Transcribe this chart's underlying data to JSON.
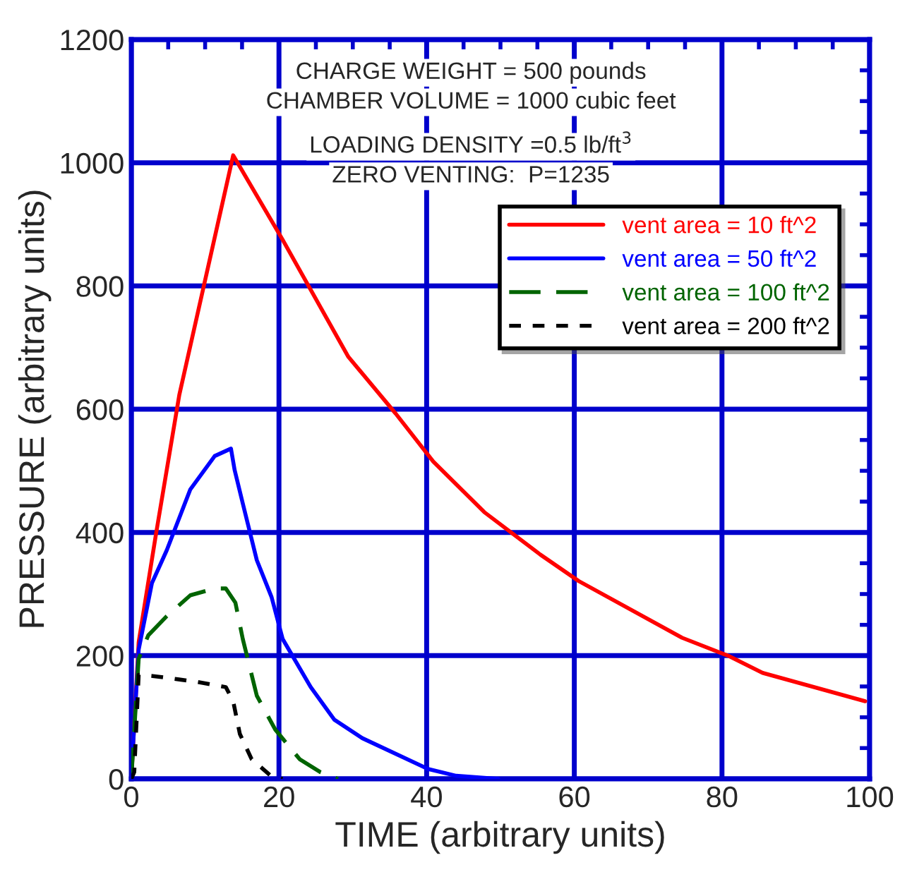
{
  "chart_data": {
    "type": "line",
    "xlabel": "TIME (arbitrary units)",
    "ylabel": "PRESSURE (arbitrary units)",
    "xlim": [
      0,
      100
    ],
    "xticks": [
      0,
      20,
      40,
      60,
      80,
      100
    ],
    "ylim": [
      0,
      1200
    ],
    "yticks": [
      0,
      200,
      400,
      600,
      800,
      1000,
      1200
    ],
    "grid": true,
    "legend": "top right",
    "marker": "none",
    "annotations": [
      "CHARGE WEIGHT = 500 pounds",
      "CHAMBER VOLUME = 1000 cubic feet",
      "LOADING DENSITY =0.5 lb/ft$^{3}$",
      "ZERO VENTING:  P=1235"
    ],
    "series": [
      {
        "name": "vent area = 10 ft^2",
        "color": "#ff0000",
        "line_style": "solid",
        "x": [
          0,
          1,
          3.3,
          6.5,
          13.8,
          20.5,
          29.4,
          35.8,
          40.9,
          47.8,
          55.4,
          60.6,
          74.6,
          81,
          85.5,
          99.4
        ],
        "values": [
          0,
          222,
          394,
          623,
          1012,
          875,
          685,
          593,
          515,
          433,
          364,
          321,
          229,
          199,
          172,
          126
        ]
      },
      {
        "name": "vent area = 50 ft^2",
        "color": "#0000ff",
        "line_style": "solid",
        "x": [
          0,
          1,
          2.8,
          4.8,
          8,
          11.3,
          13.5,
          14,
          15.1,
          17,
          19,
          20.5,
          24.3,
          27.5,
          31.3,
          40.2,
          44,
          49.7
        ],
        "values": [
          5,
          210,
          318,
          371,
          470,
          524,
          536,
          501,
          447,
          355,
          295,
          227,
          149,
          96,
          66,
          16,
          5,
          0
        ]
      },
      {
        "name": "vent area = 100 ft^2",
        "color": "#006400",
        "line_style": "dashed",
        "x": [
          0,
          1,
          2.3,
          4.8,
          8,
          11.3,
          12.8,
          14.1,
          15.1,
          17,
          19.5,
          22.8,
          25.6,
          28
        ],
        "values": [
          0,
          195,
          233,
          264,
          298,
          309,
          309,
          286,
          227,
          135,
          80,
          32,
          11,
          0
        ]
      },
      {
        "name": "vent area = 200 ft^2",
        "color": "#000000",
        "line_style": "dotted",
        "x": [
          0,
          0.4,
          1,
          2.9,
          8.6,
          12.8,
          13.8,
          14.7,
          16.3,
          18.9,
          20.5
        ],
        "values": [
          0,
          11,
          169,
          167,
          158,
          149,
          126,
          73,
          32,
          5,
          0
        ]
      }
    ]
  }
}
